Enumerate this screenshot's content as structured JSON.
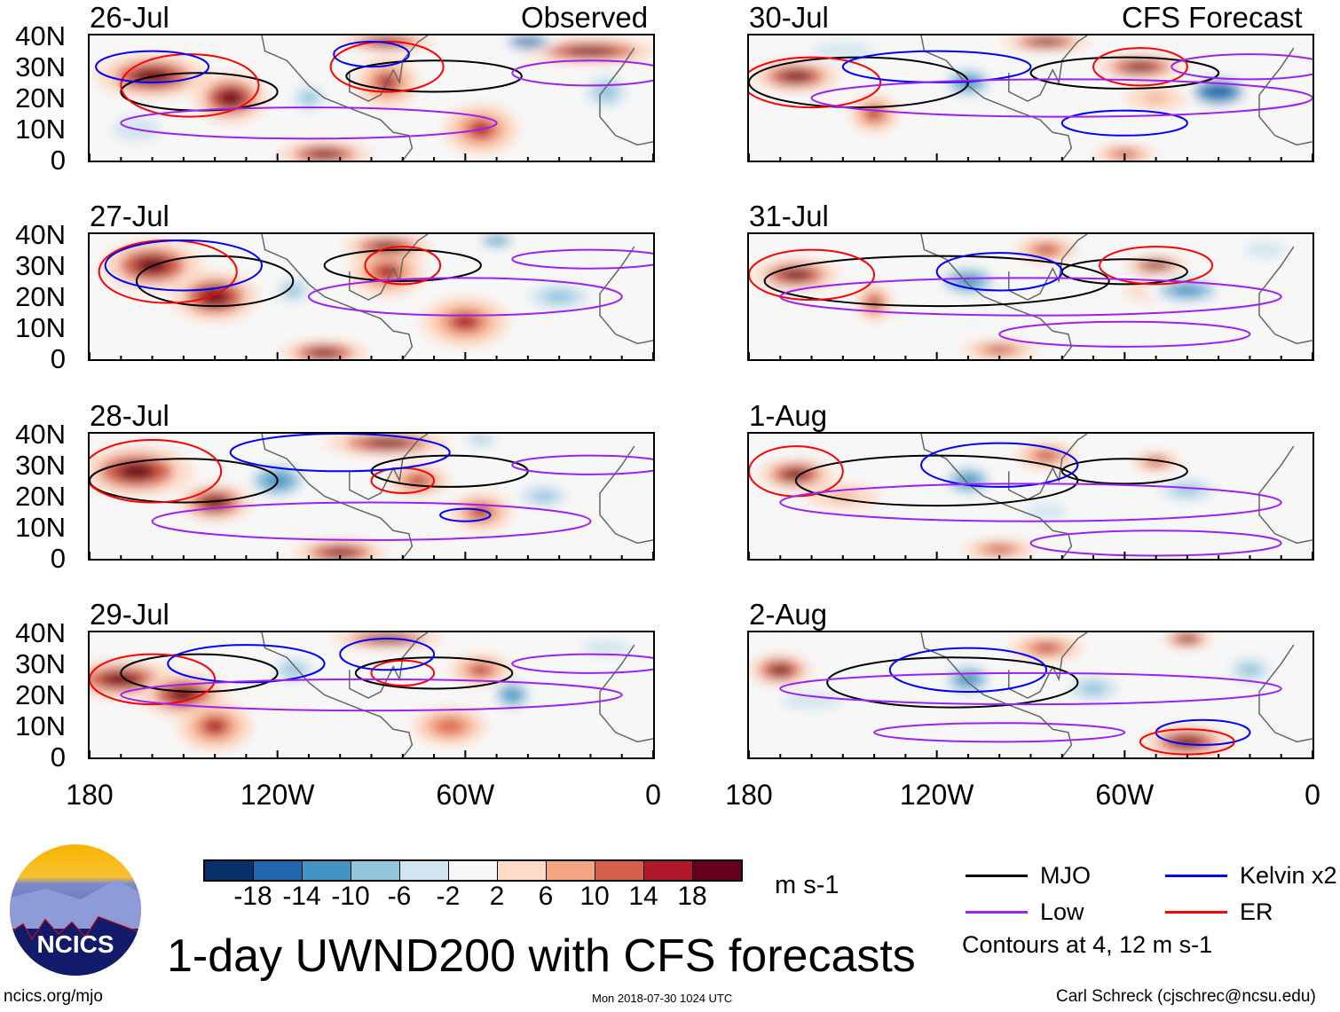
{
  "title": "1-day UWND200 with CFS forecasts",
  "left_header": "Observed",
  "right_header": "CFS Forecast",
  "footer": {
    "left": "ncics.org/mjo",
    "center": "Mon 2018-07-30 1024 UTC",
    "right": "Carl Schreck (cjschrec@ncsu.edu)"
  },
  "logo_text": "NCICS",
  "colorbar": {
    "unit": "m s-1",
    "colors": [
      "#08306b",
      "#2166ac",
      "#4393c3",
      "#92c5de",
      "#d1e5f0",
      "#f7f7f7",
      "#fddbc7",
      "#f4a582",
      "#d6604d",
      "#b2182b",
      "#67001f"
    ],
    "ticks": [
      "-18",
      "-14",
      "-10",
      "-6",
      "-2",
      "2",
      "6",
      "10",
      "14",
      "18"
    ]
  },
  "legend": {
    "items": [
      {
        "label": "MJO",
        "color": "#000000"
      },
      {
        "label": "Kelvin x2",
        "color": "#0000ff"
      },
      {
        "label": "Low",
        "color": "#a020f0"
      },
      {
        "label": "ER",
        "color": "#ff0000"
      }
    ],
    "note": "Contours at 4, 12 m s-1"
  },
  "chart_data": {
    "type": "heatmap",
    "variable": "200-hPa zonal wind anomaly",
    "xlim": [
      -180,
      0
    ],
    "ylim": [
      0,
      40
    ],
    "x_ticks": [
      "180",
      "120W",
      "60W",
      "0"
    ],
    "y_ticks": [
      "40N",
      "30N",
      "20N",
      "10N",
      "0"
    ],
    "panels": [
      {
        "date": "26-Jul",
        "anom": [
          [
            -160,
            27,
            18,
            18,
            7
          ],
          [
            -135,
            20,
            18,
            12,
            8
          ],
          [
            -85,
            25,
            14,
            10,
            8
          ],
          [
            -20,
            35,
            18,
            22,
            4
          ],
          [
            -55,
            10,
            14,
            12,
            8
          ],
          [
            -105,
            2,
            18,
            15,
            4
          ],
          [
            -40,
            38,
            -18,
            10,
            3
          ],
          [
            -110,
            20,
            -10,
            8,
            6
          ],
          [
            -15,
            22,
            -10,
            10,
            8
          ],
          [
            -165,
            10,
            -6,
            12,
            6
          ],
          [
            -85,
            38,
            18,
            15,
            3
          ]
        ],
        "cont": [
          [
            "MJO",
            -145,
            22,
            25,
            6
          ],
          [
            "MJO",
            -70,
            27,
            28,
            5
          ],
          [
            "ER",
            -148,
            24,
            22,
            10
          ],
          [
            "ER",
            -85,
            30,
            18,
            8
          ],
          [
            "Kelvin",
            -160,
            30,
            18,
            5
          ],
          [
            "Kelvin",
            -90,
            34,
            12,
            4
          ],
          [
            "Low",
            -110,
            12,
            60,
            5
          ],
          [
            "Low",
            -20,
            28,
            25,
            4
          ]
        ]
      },
      {
        "date": "27-Jul",
        "anom": [
          [
            -160,
            30,
            18,
            16,
            8
          ],
          [
            -140,
            20,
            18,
            14,
            8
          ],
          [
            -85,
            28,
            14,
            12,
            8
          ],
          [
            -85,
            36,
            18,
            14,
            4
          ],
          [
            -60,
            12,
            14,
            14,
            8
          ],
          [
            -105,
            2,
            18,
            14,
            4
          ],
          [
            -50,
            38,
            -14,
            8,
            3
          ],
          [
            -115,
            22,
            -10,
            8,
            6
          ],
          [
            -30,
            20,
            -10,
            15,
            6
          ]
        ],
        "cont": [
          [
            "MJO",
            -140,
            25,
            25,
            8
          ],
          [
            "MJO",
            -80,
            30,
            25,
            5
          ],
          [
            "ER",
            -155,
            28,
            22,
            10
          ],
          [
            "ER",
            -80,
            30,
            12,
            6
          ],
          [
            "Kelvin",
            -150,
            30,
            25,
            8
          ],
          [
            "Low",
            -60,
            20,
            50,
            6
          ],
          [
            "Low",
            -20,
            32,
            25,
            3
          ]
        ]
      },
      {
        "date": "28-Jul",
        "anom": [
          [
            -165,
            28,
            18,
            18,
            8
          ],
          [
            -140,
            18,
            18,
            12,
            6
          ],
          [
            -85,
            37,
            18,
            20,
            4
          ],
          [
            -75,
            25,
            14,
            10,
            5
          ],
          [
            -55,
            15,
            14,
            10,
            6
          ],
          [
            -100,
            2,
            18,
            15,
            4
          ],
          [
            -120,
            25,
            -14,
            12,
            7
          ],
          [
            -35,
            20,
            -10,
            12,
            5
          ],
          [
            -55,
            38,
            -10,
            8,
            3
          ]
        ],
        "cont": [
          [
            "MJO",
            -150,
            25,
            30,
            7
          ],
          [
            "MJO",
            -65,
            28,
            25,
            5
          ],
          [
            "ER",
            -160,
            28,
            22,
            10
          ],
          [
            "ER",
            -80,
            25,
            10,
            4
          ],
          [
            "Kelvin",
            -100,
            34,
            35,
            6
          ],
          [
            "Kelvin",
            -60,
            14,
            8,
            2
          ],
          [
            "Low",
            -90,
            12,
            70,
            6
          ],
          [
            "Low",
            -20,
            30,
            25,
            3
          ]
        ]
      },
      {
        "date": "29-Jul",
        "anom": [
          [
            -170,
            25,
            18,
            18,
            6
          ],
          [
            -150,
            20,
            18,
            14,
            7
          ],
          [
            -140,
            10,
            14,
            12,
            8
          ],
          [
            -85,
            38,
            18,
            18,
            3
          ],
          [
            -55,
            28,
            14,
            10,
            5
          ],
          [
            -65,
            10,
            10,
            12,
            6
          ],
          [
            -45,
            20,
            -14,
            8,
            6
          ],
          [
            -115,
            28,
            -10,
            10,
            6
          ],
          [
            -15,
            35,
            -6,
            12,
            4
          ]
        ],
        "cont": [
          [
            "MJO",
            -145,
            27,
            25,
            6
          ],
          [
            "MJO",
            -70,
            27,
            25,
            5
          ],
          [
            "ER",
            -160,
            25,
            20,
            8
          ],
          [
            "ER",
            -80,
            27,
            10,
            4
          ],
          [
            "Kelvin",
            -130,
            30,
            25,
            6
          ],
          [
            "Kelvin",
            -85,
            33,
            15,
            5
          ],
          [
            "Low",
            -90,
            20,
            80,
            5
          ],
          [
            "Low",
            -20,
            30,
            25,
            3
          ]
        ]
      },
      {
        "date": "30-Jul",
        "anom": [
          [
            -165,
            27,
            18,
            14,
            5
          ],
          [
            -140,
            15,
            14,
            8,
            6
          ],
          [
            -55,
            30,
            18,
            14,
            4
          ],
          [
            -85,
            38,
            18,
            14,
            3
          ],
          [
            -50,
            20,
            6,
            10,
            4
          ],
          [
            -60,
            2,
            14,
            10,
            3
          ],
          [
            -110,
            25,
            -14,
            10,
            6
          ],
          [
            -30,
            22,
            -18,
            12,
            6
          ],
          [
            -150,
            35,
            -6,
            15,
            4
          ]
        ],
        "cont": [
          [
            "MJO",
            -145,
            25,
            35,
            8
          ],
          [
            "MJO",
            -60,
            28,
            30,
            5
          ],
          [
            "ER",
            -160,
            25,
            22,
            8
          ],
          [
            "ER",
            -55,
            30,
            15,
            6
          ],
          [
            "Kelvin",
            -120,
            30,
            30,
            5
          ],
          [
            "Kelvin",
            -60,
            12,
            20,
            4
          ],
          [
            "Low",
            -80,
            20,
            80,
            6
          ],
          [
            "Low",
            -20,
            30,
            25,
            4
          ]
        ]
      },
      {
        "date": "31-Jul",
        "anom": [
          [
            -165,
            27,
            18,
            14,
            5
          ],
          [
            -140,
            18,
            14,
            6,
            6
          ],
          [
            -85,
            35,
            14,
            10,
            4
          ],
          [
            -50,
            30,
            18,
            10,
            3
          ],
          [
            -50,
            22,
            6,
            10,
            4
          ],
          [
            -100,
            3,
            14,
            12,
            3
          ],
          [
            -110,
            25,
            -14,
            12,
            6
          ],
          [
            -40,
            22,
            -14,
            14,
            5
          ],
          [
            -15,
            35,
            -6,
            10,
            4
          ]
        ],
        "cont": [
          [
            "MJO",
            -120,
            25,
            55,
            8
          ],
          [
            "MJO",
            -60,
            28,
            20,
            4
          ],
          [
            "ER",
            -160,
            27,
            20,
            8
          ],
          [
            "ER",
            -50,
            30,
            18,
            6
          ],
          [
            "Kelvin",
            -100,
            28,
            20,
            6
          ],
          [
            "Low",
            -90,
            20,
            80,
            6
          ],
          [
            "Low",
            -60,
            8,
            40,
            4
          ]
        ]
      },
      {
        "date": "1-Aug",
        "anom": [
          [
            -165,
            27,
            18,
            12,
            5
          ],
          [
            -150,
            20,
            6,
            12,
            4
          ],
          [
            -85,
            33,
            14,
            10,
            4
          ],
          [
            -50,
            31,
            14,
            8,
            3
          ],
          [
            -100,
            3,
            14,
            12,
            3
          ],
          [
            -110,
            25,
            -14,
            10,
            6
          ],
          [
            -40,
            22,
            -10,
            14,
            5
          ],
          [
            -85,
            15,
            -6,
            10,
            4
          ]
        ],
        "cont": [
          [
            "MJO",
            -120,
            25,
            45,
            8
          ],
          [
            "MJO",
            -60,
            28,
            20,
            4
          ],
          [
            "ER",
            -165,
            28,
            15,
            8
          ],
          [
            "Kelvin",
            -100,
            30,
            25,
            7
          ],
          [
            "Low",
            -90,
            18,
            80,
            6
          ],
          [
            "Low",
            -50,
            5,
            40,
            4
          ]
        ]
      },
      {
        "date": "2-Aug",
        "anom": [
          [
            -170,
            28,
            18,
            10,
            5
          ],
          [
            -85,
            35,
            14,
            12,
            4
          ],
          [
            -40,
            38,
            18,
            8,
            3
          ],
          [
            -40,
            5,
            18,
            14,
            5
          ],
          [
            -110,
            25,
            -14,
            10,
            6
          ],
          [
            -70,
            22,
            -10,
            12,
            6
          ],
          [
            -20,
            28,
            -10,
            10,
            6
          ],
          [
            -160,
            18,
            -6,
            15,
            4
          ]
        ],
        "cont": [
          [
            "MJO",
            -115,
            24,
            40,
            8
          ],
          [
            "Kelvin",
            -110,
            28,
            25,
            7
          ],
          [
            "Kelvin",
            -35,
            8,
            15,
            4
          ],
          [
            "ER",
            -40,
            5,
            15,
            4
          ],
          [
            "Low",
            -90,
            22,
            80,
            5
          ],
          [
            "Low",
            -100,
            8,
            40,
            3
          ]
        ]
      }
    ]
  }
}
